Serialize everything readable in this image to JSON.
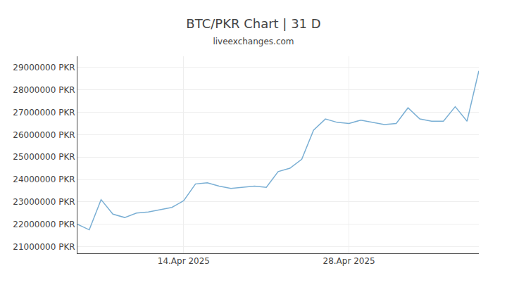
{
  "chart_data": {
    "type": "line",
    "title": "BTC/PKR Chart | 31 D",
    "subtitle": "liveexchanges.com",
    "color": "#7aafd4",
    "categories": [
      null,
      null,
      null,
      null,
      null,
      null,
      null,
      null,
      null,
      "14.Apr 2025",
      null,
      null,
      null,
      null,
      null,
      null,
      null,
      null,
      null,
      null,
      null,
      null,
      null,
      "28.Apr 2025",
      null,
      null,
      null,
      null,
      null,
      null,
      null,
      null,
      null,
      null,
      null
    ],
    "values": [
      22000000,
      21750000,
      23100000,
      22450000,
      22300000,
      22500000,
      22550000,
      22650000,
      22750000,
      23050000,
      23800000,
      23850000,
      23700000,
      23600000,
      23650000,
      23700000,
      23650000,
      24350000,
      24500000,
      24900000,
      26200000,
      26700000,
      26550000,
      26500000,
      26650000,
      26550000,
      26450000,
      26500000,
      27200000,
      26700000,
      26600000,
      26600000,
      27250000,
      26600000,
      28850000
    ],
    "ylim": [
      20700000,
      29500000
    ],
    "yticks": [
      {
        "value": 21000000,
        "label": "21000000 PKR"
      },
      {
        "value": 22000000,
        "label": "22000000 PKR"
      },
      {
        "value": 23000000,
        "label": "23000000 PKR"
      },
      {
        "value": 24000000,
        "label": "24000000 PKR"
      },
      {
        "value": 25000000,
        "label": "25000000 PKR"
      },
      {
        "value": 26000000,
        "label": "26000000 PKR"
      },
      {
        "value": 27000000,
        "label": "27000000 PKR"
      },
      {
        "value": 28000000,
        "label": "28000000 PKR"
      },
      {
        "value": 29000000,
        "label": "29000000 PKR"
      }
    ],
    "grid": true
  }
}
